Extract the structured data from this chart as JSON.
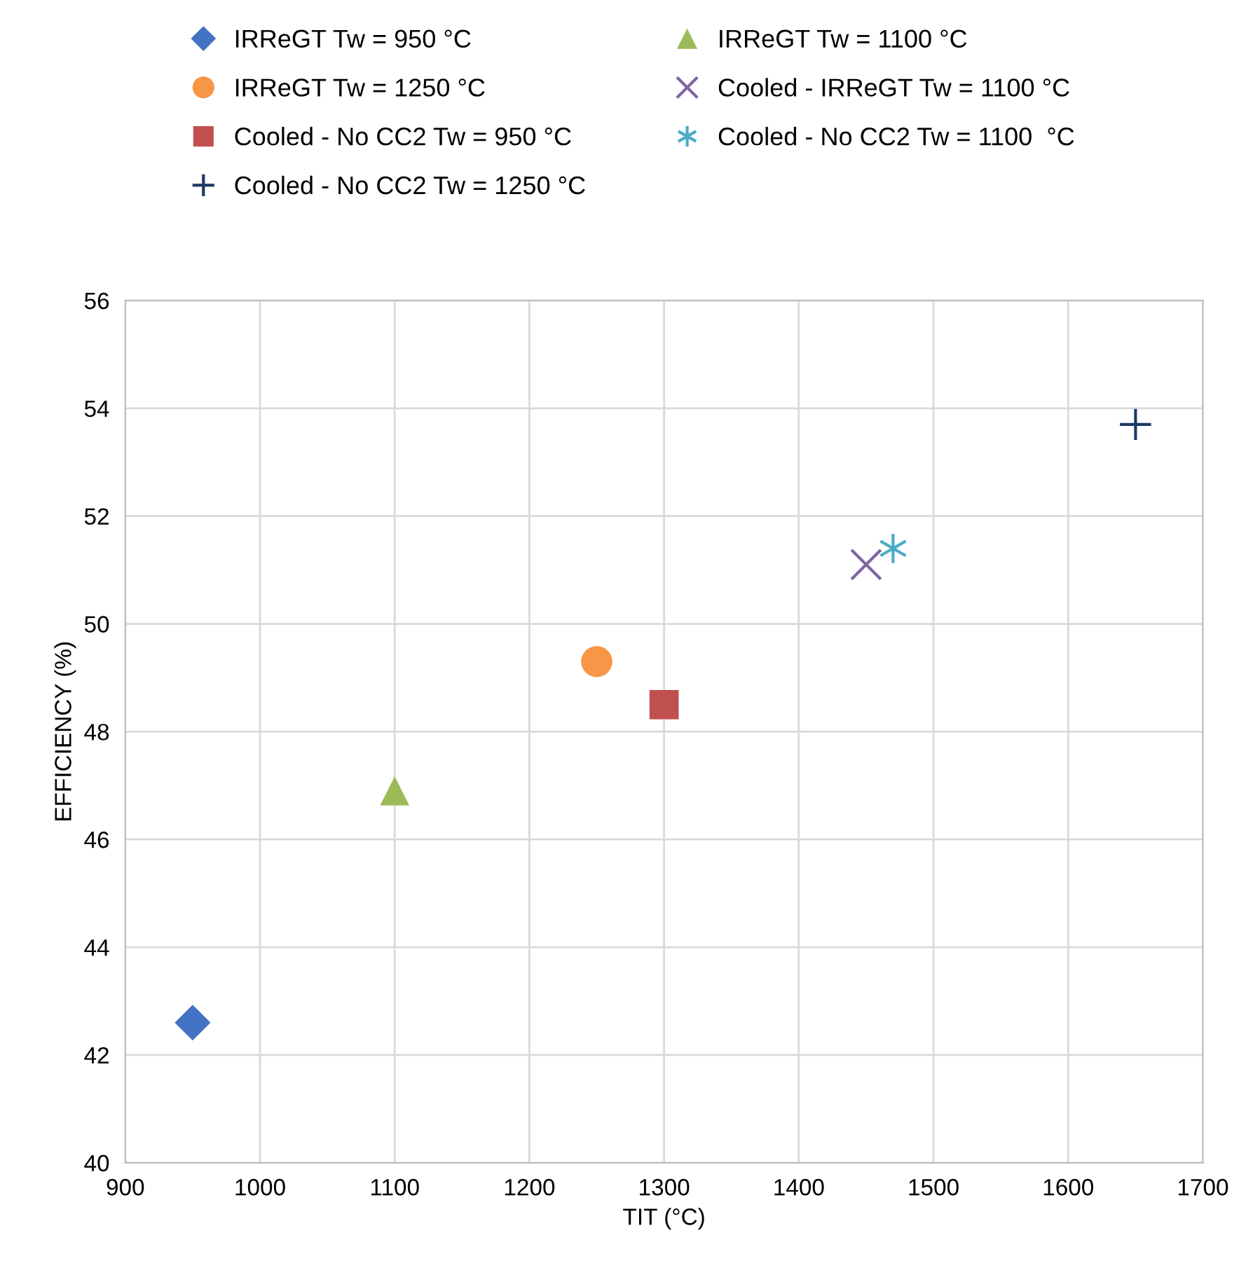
{
  "chart_data": {
    "type": "scatter",
    "xlabel": "TIT (°C)",
    "ylabel": "EFFICIENCY (%)",
    "xlim": [
      900,
      1700
    ],
    "xticks": [
      900,
      1000,
      1100,
      1200,
      1300,
      1400,
      1500,
      1600,
      1700
    ],
    "ylim": [
      40,
      56
    ],
    "yticks": [
      40,
      42,
      44,
      46,
      48,
      50,
      52,
      54,
      56
    ],
    "grid": true,
    "legend": "top",
    "series": [
      {
        "name": "IRReGT Tw = 950 °C",
        "color": "#4472c4",
        "marker": "diamond",
        "x": [
          950
        ],
        "values": [
          42.6
        ]
      },
      {
        "name": "IRReGT Tw = 1100 °C",
        "color": "#9bbb59",
        "marker": "triangle",
        "x": [
          1100
        ],
        "values": [
          46.9
        ]
      },
      {
        "name": "IRReGT Tw = 1250 °C",
        "color": "#f79646",
        "marker": "circle",
        "x": [
          1250
        ],
        "values": [
          49.3
        ]
      },
      {
        "name": "Cooled - IRReGT Tw = 1100 °C",
        "color": "#8064a2",
        "marker": "cross",
        "x": [
          1450
        ],
        "values": [
          51.1
        ]
      },
      {
        "name": "Cooled - No CC2 Tw = 950 °C",
        "color": "#c0504d",
        "marker": "square",
        "x": [
          1300
        ],
        "values": [
          48.5
        ]
      },
      {
        "name": "Cooled - No CC2 Tw = 1100  °C",
        "color": "#4bacc6",
        "marker": "cross",
        "x": [
          1470
        ],
        "values": [
          51.4
        ]
      },
      {
        "name": "Cooled - No CC2 Tw = 1250 °C",
        "color": "#1f3864",
        "marker": "cross",
        "x": [
          1650
        ],
        "values": [
          53.7
        ]
      }
    ]
  }
}
